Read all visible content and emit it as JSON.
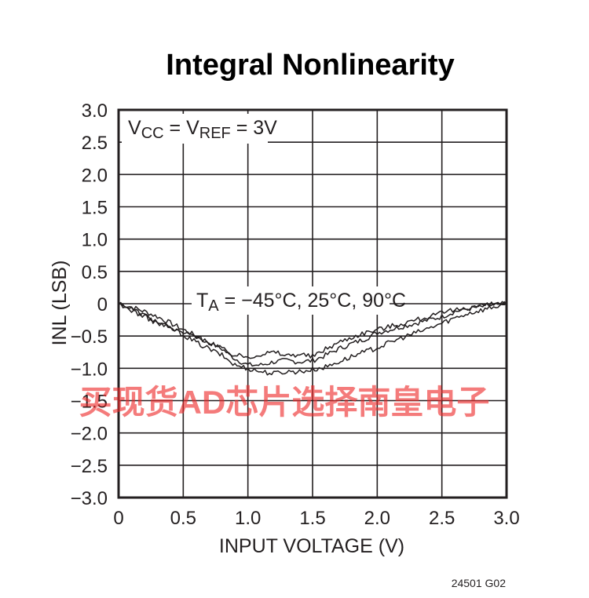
{
  "chart_data": {
    "type": "line",
    "title": "Integral Nonlinearity",
    "xlabel": "INPUT VOLTAGE (V)",
    "ylabel": "INL (LSB)",
    "xlim": [
      0,
      3.0
    ],
    "ylim": [
      -3.0,
      3.0
    ],
    "x_ticks": [
      "0",
      "0.5",
      "1.0",
      "1.5",
      "2.0",
      "2.5",
      "3.0"
    ],
    "y_ticks": [
      "3.0",
      "2.5",
      "2.0",
      "1.5",
      "1.0",
      "0.5",
      "0",
      "−0.5",
      "−1.0",
      "−1.5",
      "−2.0",
      "−2.5",
      "−3.0"
    ],
    "grid": true,
    "annotations": {
      "condition": {
        "parts": [
          {
            "t": "V"
          },
          {
            "t": "CC",
            "sub": true
          },
          {
            "t": " = V"
          },
          {
            "t": "REF",
            "sub": true
          },
          {
            "t": " = 3V"
          }
        ]
      },
      "temperatures": {
        "parts": [
          {
            "t": "T"
          },
          {
            "t": "A",
            "sub": true
          },
          {
            "t": " = −45°C, 25°C, 90°C"
          }
        ]
      }
    },
    "figure_id": "24501 G02",
    "series": [
      {
        "x": [
          0,
          0.1,
          0.2,
          0.3,
          0.4,
          0.5,
          0.6,
          0.7,
          0.8,
          0.9,
          1.0,
          1.1,
          1.2,
          1.3,
          1.4,
          1.5,
          1.6,
          1.7,
          1.8,
          1.9,
          2.0,
          2.1,
          2.2,
          2.3,
          2.4,
          2.5,
          2.6,
          2.7,
          2.8,
          2.9,
          3.0
        ],
        "values": [
          0.0,
          -0.05,
          -0.12,
          -0.2,
          -0.3,
          -0.4,
          -0.5,
          -0.6,
          -0.7,
          -0.85,
          -0.95,
          -0.95,
          -0.9,
          -0.88,
          -0.9,
          -0.88,
          -0.8,
          -0.7,
          -0.62,
          -0.55,
          -0.45,
          -0.4,
          -0.35,
          -0.3,
          -0.25,
          -0.2,
          -0.12,
          -0.08,
          -0.05,
          -0.02,
          0.0
        ]
      },
      {
        "x": [
          0,
          0.1,
          0.2,
          0.3,
          0.4,
          0.5,
          0.6,
          0.7,
          0.8,
          0.9,
          1.0,
          1.1,
          1.2,
          1.3,
          1.4,
          1.5,
          1.6,
          1.7,
          1.8,
          1.9,
          2.0,
          2.1,
          2.2,
          2.3,
          2.4,
          2.5,
          2.6,
          2.7,
          2.8,
          2.9,
          3.0
        ],
        "values": [
          0.0,
          -0.08,
          -0.18,
          -0.28,
          -0.38,
          -0.48,
          -0.6,
          -0.7,
          -0.8,
          -0.95,
          -1.0,
          -1.05,
          -1.08,
          -1.05,
          -1.05,
          -1.02,
          -0.98,
          -0.9,
          -0.82,
          -0.75,
          -0.68,
          -0.6,
          -0.52,
          -0.45,
          -0.38,
          -0.3,
          -0.22,
          -0.15,
          -0.1,
          -0.05,
          0.0
        ]
      },
      {
        "x": [
          0,
          0.1,
          0.2,
          0.3,
          0.4,
          0.5,
          0.6,
          0.7,
          0.8,
          0.9,
          1.0,
          1.1,
          1.2,
          1.3,
          1.4,
          1.5,
          1.6,
          1.7,
          1.8,
          1.9,
          2.0,
          2.1,
          2.2,
          2.3,
          2.4,
          2.5,
          2.6,
          2.7,
          2.8,
          2.9,
          3.0
        ],
        "values": [
          0.0,
          -0.1,
          -0.2,
          -0.3,
          -0.38,
          -0.45,
          -0.5,
          -0.6,
          -0.7,
          -0.8,
          -0.82,
          -0.78,
          -0.75,
          -0.8,
          -0.78,
          -0.82,
          -0.7,
          -0.6,
          -0.52,
          -0.45,
          -0.4,
          -0.35,
          -0.3,
          -0.25,
          -0.2,
          -0.15,
          -0.1,
          -0.06,
          -0.03,
          -0.01,
          0.0
        ]
      }
    ]
  },
  "watermark": "买现货AD芯片选择南皇电子",
  "colors": {
    "ink": "#231f20",
    "watermark": "#ee2a2a"
  }
}
